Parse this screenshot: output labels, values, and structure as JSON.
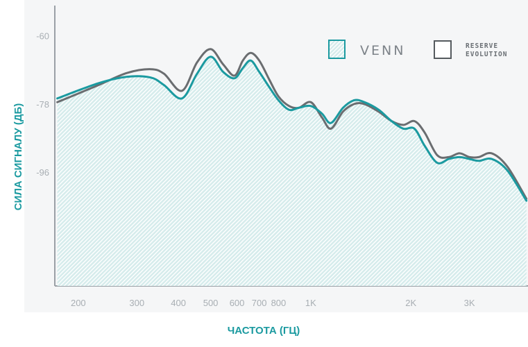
{
  "chart_data": {
    "type": "area",
    "title": "",
    "xlabel": "ЧАСТОТА (ГЦ)",
    "ylabel": "СИЛА СИГНАЛУ (ДБ)",
    "x_scale": "log",
    "xlim": [
      170,
      4500
    ],
    "ylim": [
      -126,
      -52
    ],
    "x_ticks": [
      200,
      300,
      400,
      500,
      600,
      700,
      800,
      1000,
      2000,
      3000
    ],
    "x_tick_labels": [
      "200",
      "300",
      "400",
      "500",
      "600",
      "700",
      "800",
      "1K",
      "2K",
      "3K"
    ],
    "y_ticks": [
      -60,
      -78,
      -96
    ],
    "y_tick_labels": [
      "-60",
      "-78",
      "-96"
    ],
    "grid": false,
    "legend_position": "top-right",
    "x": [
      173,
      230,
      280,
      330,
      362,
      410,
      455,
      500,
      545,
      590,
      625,
      660,
      700,
      750,
      800,
      860,
      920,
      1000,
      1080,
      1150,
      1250,
      1350,
      1450,
      1600,
      1750,
      1900,
      2050,
      2200,
      2400,
      2600,
      2800,
      3000,
      3200,
      3500,
      3900,
      4450
    ],
    "series": [
      {
        "name": "VENN",
        "color": "#1b9aa0",
        "fill": "#d4eaea",
        "values": [
          -76.5,
          -72.5,
          -70.8,
          -71.0,
          -73.0,
          -76.5,
          -70.0,
          -65.5,
          -69.5,
          -71.2,
          -68.5,
          -66.5,
          -69.5,
          -73.5,
          -77.0,
          -79.5,
          -79.0,
          -78.5,
          -80.5,
          -83.0,
          -79.0,
          -77.0,
          -77.5,
          -79.5,
          -82.5,
          -84.5,
          -84.5,
          -89.0,
          -93.5,
          -92.5,
          -92.0,
          -92.5,
          -93.0,
          -92.5,
          -95.5,
          -103.5
        ]
      },
      {
        "name": "RESERVE EVOLUTION",
        "color": "#6a6d70",
        "values": [
          -77.5,
          -73.0,
          -69.8,
          -68.8,
          -70.0,
          -74.5,
          -67.0,
          -63.5,
          -67.5,
          -70.5,
          -66.5,
          -64.5,
          -66.5,
          -71.5,
          -76.0,
          -78.5,
          -79.0,
          -77.5,
          -81.5,
          -84.5,
          -80.0,
          -78.0,
          -78.0,
          -80.0,
          -82.5,
          -83.5,
          -82.5,
          -85.5,
          -91.5,
          -92.0,
          -91.0,
          -92.0,
          -92.0,
          -91.0,
          -94.5,
          -103.0
        ]
      }
    ]
  }
}
